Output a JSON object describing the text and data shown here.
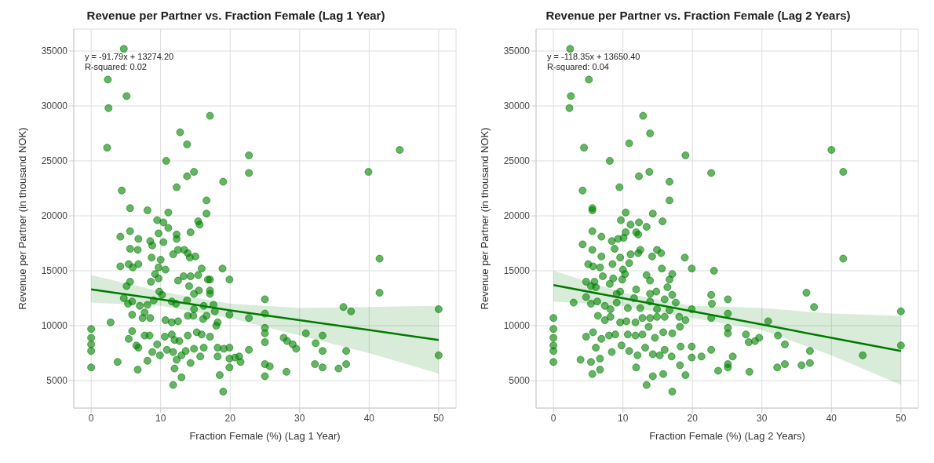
{
  "chart_data": [
    {
      "type": "scatter",
      "title": "Revenue per Partner vs. Fraction Female (Lag 1 Year)",
      "xlabel": "Fraction Female (%) (Lag 1 Year)",
      "ylabel": "Revenue per Partner (in thousand NOK)",
      "annotations": [
        "y = -91.79x + 13274.20",
        "R-squared: 0.02"
      ],
      "xlim": [
        -2.5,
        52.5
      ],
      "xticks": [
        0,
        10,
        20,
        30,
        40,
        50
      ],
      "ylim": [
        2500,
        37000
      ],
      "yticks": [
        5000,
        10000,
        15000,
        20000,
        25000,
        30000,
        35000
      ],
      "grid": true,
      "series": [
        {
          "color": "#008000",
          "marker": "circle",
          "x": [
            4.7,
            2.4,
            5.1,
            2.5,
            2.3,
            17.1,
            12.8,
            13.8,
            10.8,
            22.7,
            22.7,
            14.8,
            13.8,
            19.0,
            12.3,
            4.4,
            16.6,
            16.6,
            5.6,
            8.1,
            11.1,
            9.5,
            10.4,
            11.1,
            15.4,
            15.6,
            5.6,
            4.2,
            6.8,
            9.7,
            12.3,
            12.3,
            14.3,
            8.5,
            8.8,
            10.4,
            5.6,
            6.7,
            8.7,
            11.8,
            12.5,
            13.4,
            13.9,
            15.0,
            14.2,
            10.0,
            4.2,
            5.4,
            6.0,
            6.8,
            9.7,
            10.7,
            9.2,
            15.9,
            18.9,
            5.6,
            5.1,
            8.6,
            9.7,
            12.5,
            13.3,
            14.3,
            15.4,
            16.8,
            17.1,
            19.9,
            14.1,
            15.5,
            14.8,
            17.1,
            17.1,
            9.8,
            10.2,
            4.7,
            5.9,
            5.3,
            7.0,
            8.1,
            9.0,
            11.6,
            12.2,
            13.8,
            14.8,
            16.2,
            17.6,
            17.8,
            5.9,
            7.7,
            2.8,
            7.4,
            8.5,
            10.7,
            11.6,
            12.5,
            13.9,
            14.7,
            16.1,
            16.6,
            18.2,
            19.9,
            22.7,
            18.0,
            0,
            0,
            0,
            0,
            0,
            5.9,
            5.4,
            6.5,
            6.8,
            7.7,
            8.4,
            9.5,
            10.6,
            11.6,
            12.0,
            12.7,
            13.9,
            15.2,
            15.9,
            17.1,
            8.8,
            9.9,
            10.9,
            11.8,
            12.3,
            13.0,
            13.6,
            14.3,
            14.8,
            15.7,
            16.2,
            18.2,
            19.1,
            19.9,
            18.2,
            19.9,
            20.7,
            21.3,
            21.5,
            22.7,
            8.1,
            3.8,
            6.7,
            12.0,
            13.0,
            18.5,
            19.9,
            11.8,
            19.0,
            44.4,
            39.9,
            41.5,
            41.5,
            36.3,
            37.4,
            50,
            50,
            25,
            25,
            25,
            25,
            25,
            25,
            25.7,
            25,
            27.7,
            28.2,
            29.0,
            29.5,
            28.1,
            30.9,
            33.3,
            32.3,
            33.3,
            32.2,
            33.3,
            35.6,
            36.7,
            36.7
          ],
          "values": [
            35200,
            32400,
            30900,
            29800,
            26200,
            29100,
            27600,
            26500,
            25000,
            25500,
            23900,
            24000,
            23600,
            23100,
            22600,
            22300,
            21400,
            20200,
            20700,
            20500,
            20300,
            19600,
            19400,
            18900,
            19500,
            19200,
            18600,
            18100,
            17900,
            18400,
            18300,
            17900,
            18500,
            17700,
            17300,
            17600,
            17000,
            16900,
            16200,
            16500,
            16900,
            16900,
            16600,
            16300,
            16200,
            16000,
            15400,
            15600,
            15300,
            15600,
            15300,
            15100,
            14700,
            15200,
            15200,
            14000,
            13600,
            14000,
            14300,
            14100,
            14500,
            14500,
            14600,
            14200,
            14200,
            14200,
            13600,
            13200,
            12900,
            13200,
            12900,
            13100,
            12800,
            12500,
            12200,
            12000,
            11800,
            11900,
            12300,
            12200,
            12000,
            12300,
            11500,
            11800,
            11900,
            11300,
            11000,
            11200,
            10300,
            10700,
            10700,
            10500,
            10300,
            10400,
            10900,
            10900,
            10600,
            10900,
            10300,
            11000,
            10700,
            10000,
            9700,
            8900,
            8300,
            7700,
            6200,
            9500,
            8800,
            8200,
            8000,
            9100,
            9100,
            8300,
            9000,
            9200,
            8700,
            8600,
            9100,
            9400,
            9200,
            9000,
            7600,
            7300,
            7800,
            7600,
            6900,
            7300,
            7700,
            6600,
            7900,
            7200,
            8000,
            8000,
            7900,
            8000,
            7200,
            7000,
            7100,
            7200,
            6700,
            7800,
            6800,
            6700,
            6000,
            6100,
            5300,
            5500,
            6200,
            4600,
            4000,
            26000,
            24000,
            16100,
            13000,
            11700,
            11300,
            11500,
            7300,
            12400,
            11100,
            9800,
            9300,
            8500,
            6500,
            6300,
            5400,
            8900,
            8600,
            8300,
            7900,
            5800,
            9300,
            9100,
            8400,
            7700,
            6500,
            6200,
            6100,
            7700,
            6500
          ]
        },
        {
          "type": "line",
          "color": "#007a00",
          "x": [
            0,
            10,
            20,
            30,
            40,
            50
          ],
          "marker": "none",
          "values": [
            13300,
            12400,
            11400,
            10500,
            9600,
            8700
          ],
          "lower": [
            12100,
            11800,
            10700,
            9100,
            7500,
            5650
          ],
          "upper": [
            14600,
            13100,
            12000,
            11600,
            11700,
            11800
          ]
        }
      ]
    },
    {
      "type": "scatter",
      "title": "Revenue per Partner vs. Fraction Female (Lag 2 Years)",
      "xlabel": "Fraction Female (%) (Lag 2 Years)",
      "ylabel": "Revenue per Partner (in thousand NOK)",
      "annotations": [
        "y = -118.35x + 13650.40",
        "R-squared: 0.04"
      ],
      "xlim": [
        -2.5,
        52.5
      ],
      "xticks": [
        0,
        10,
        20,
        30,
        40,
        50
      ],
      "ylim": [
        2500,
        37000
      ],
      "yticks": [
        5000,
        10000,
        15000,
        20000,
        25000,
        30000,
        35000
      ],
      "grid": true,
      "series": [
        {
          "color": "#008000",
          "marker": "circle",
          "x": [
            2.4,
            5.1,
            2.5,
            2.3,
            4.4,
            12.9,
            13.9,
            10.9,
            8.1,
            19.0,
            22.7,
            13.8,
            12.3,
            16.7,
            9.5,
            4.2,
            16.7,
            5.6,
            5.6,
            10.4,
            14.3,
            9.7,
            11.1,
            12.3,
            13.4,
            15.7,
            5.6,
            6.9,
            4.2,
            8.4,
            9.3,
            10.1,
            10.4,
            11.9,
            12.2,
            8.8,
            5.6,
            6.9,
            11.1,
            12.2,
            12.5,
            14.2,
            14.9,
            15.5,
            18.9,
            5.0,
            5.7,
            6.7,
            8.5,
            9.6,
            10.9,
            10.0,
            10.3,
            15.6,
            17.1,
            19.9,
            23.1,
            4.7,
            5.9,
            7.1,
            8.1,
            8.6,
            9.9,
            13.4,
            13.9,
            16.7,
            5.4,
            6.1,
            9.1,
            9.6,
            11.9,
            13.9,
            14.8,
            16.4,
            17.1,
            22.7,
            4.7,
            2.9,
            5.4,
            6.3,
            7.4,
            8.2,
            9.1,
            10.7,
            11.6,
            12.5,
            13.9,
            14.9,
            16.0,
            17.6,
            16.7,
            19.9,
            22.8,
            22.7,
            18.1,
            6.4,
            7.4,
            8.2,
            9.6,
            10.5,
            11.8,
            12.8,
            13.9,
            14.9,
            16.0,
            19.0,
            0,
            0,
            0,
            0,
            0,
            0,
            4.7,
            5.7,
            6.9,
            8.0,
            8.9,
            10.7,
            11.8,
            12.8,
            13.7,
            14.6,
            15.8,
            17.1,
            18.2,
            6.1,
            8.4,
            9.8,
            10.9,
            12.1,
            13.2,
            14.3,
            15.3,
            16.0,
            17.0,
            18.3,
            19.9,
            19.9,
            21.3,
            22.7,
            3.9,
            5.4,
            6.7,
            5.6,
            6.7,
            11.9,
            14.3,
            15.8,
            18.2,
            19.0,
            23.7,
            13.4,
            17.1,
            40.0,
            41.7,
            41.7,
            36.4,
            37.5,
            50,
            50,
            25.1,
            25.1,
            25.1,
            25.1,
            25.1,
            25.1,
            25.8,
            27.7,
            28.1,
            29.0,
            29.6,
            28.2,
            30.9,
            32.3,
            33.3,
            32.2,
            33.3,
            35.7,
            36.9,
            36.9,
            44.5
          ],
          "values": [
            35200,
            32400,
            30900,
            29800,
            26200,
            29100,
            27500,
            26600,
            25000,
            25500,
            23900,
            24000,
            23600,
            23100,
            22600,
            22300,
            21400,
            20700,
            20500,
            20300,
            20200,
            19600,
            19200,
            19400,
            19000,
            19500,
            18600,
            18100,
            17400,
            17700,
            17900,
            18000,
            18500,
            18500,
            18300,
            17000,
            16900,
            16300,
            16500,
            16600,
            16900,
            16300,
            16900,
            16600,
            16200,
            15600,
            15400,
            15300,
            15600,
            16200,
            15700,
            15100,
            14700,
            15200,
            14700,
            15200,
            15000,
            14000,
            14000,
            14500,
            13800,
            14300,
            14200,
            14600,
            14100,
            14200,
            13600,
            13500,
            12900,
            13100,
            13300,
            12900,
            13100,
            13500,
            12800,
            12800,
            12600,
            12100,
            12000,
            12200,
            11800,
            11500,
            12100,
            11600,
            12500,
            11600,
            12200,
            11500,
            12400,
            12100,
            11400,
            11500,
            12000,
            10700,
            10800,
            10900,
            10500,
            10800,
            10300,
            10400,
            10300,
            10700,
            10700,
            10800,
            10800,
            10500,
            10700,
            9700,
            8900,
            8200,
            7700,
            6700,
            9000,
            9400,
            8800,
            9100,
            9200,
            9200,
            9100,
            9200,
            9900,
            8900,
            9400,
            9300,
            9900,
            8000,
            7600,
            8200,
            7700,
            7300,
            8000,
            7400,
            7300,
            7800,
            7200,
            8100,
            8100,
            7100,
            7200,
            7800,
            6900,
            6700,
            7000,
            5600,
            6000,
            6200,
            5400,
            5600,
            6400,
            5500,
            5900,
            4600,
            4000,
            26000,
            24000,
            16100,
            13000,
            11700,
            11300,
            8200,
            12400,
            11100,
            9800,
            9300,
            6500,
            6200,
            7200,
            9200,
            8500,
            8600,
            8900,
            5800,
            10400,
            9100,
            8300,
            6200,
            6500,
            6400,
            7700,
            6600,
            7300
          ]
        },
        {
          "type": "line",
          "color": "#007a00",
          "x": [
            0,
            10,
            20,
            30,
            40,
            50
          ],
          "marker": "none",
          "values": [
            13700,
            12500,
            11300,
            10100,
            8900,
            7700
          ],
          "lower": [
            12200,
            11800,
            10700,
            9600,
            7300,
            4600
          ],
          "upper": [
            15000,
            13000,
            11800,
            11600,
            11100,
            10900
          ]
        }
      ]
    }
  ]
}
